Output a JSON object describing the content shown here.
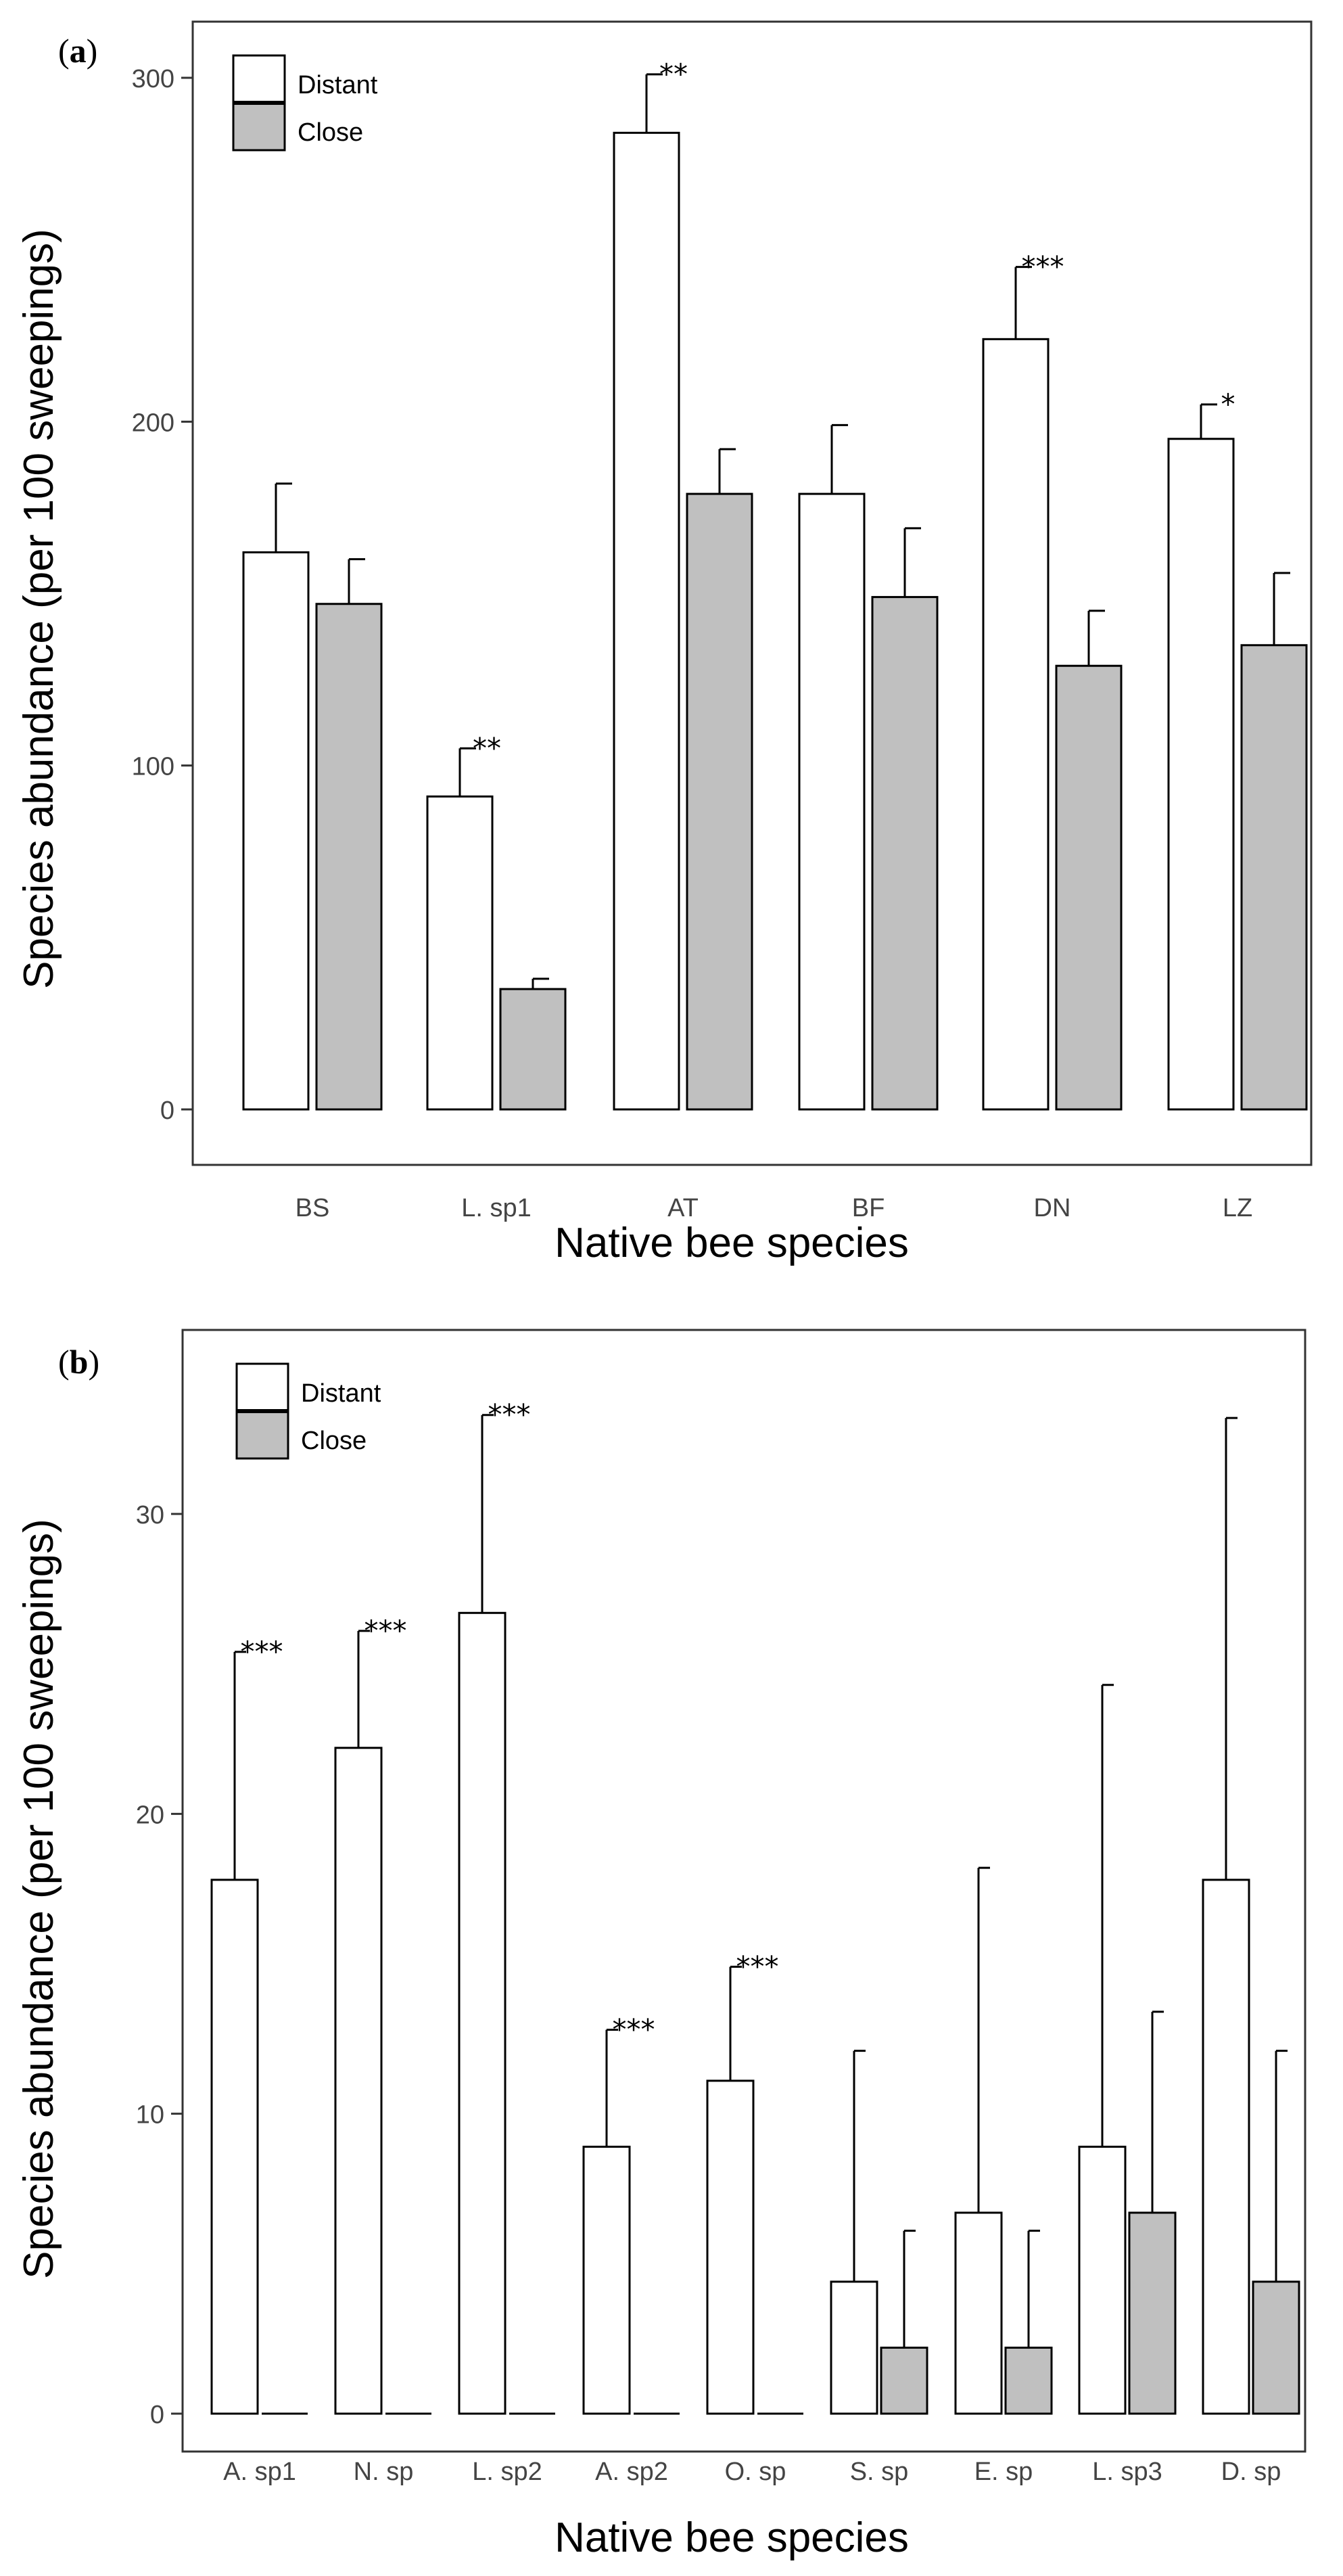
{
  "chart_data": [
    {
      "type": "bar",
      "panel_label": "(a)",
      "panel_letter": "a",
      "xlabel": "Native bee species",
      "ylabel": "Species abundance (per 100 sweepings)",
      "ylim": [
        0,
        310
      ],
      "yticks": [
        0,
        100,
        200,
        300
      ],
      "grid": false,
      "legend": {
        "position": "top-left",
        "entries": [
          {
            "name": "Distant",
            "color": "#ffffff"
          },
          {
            "name": "Close",
            "color": "#c0c0c0"
          }
        ]
      },
      "categories": [
        "BS",
        "L. sp1",
        "AT",
        "BF",
        "DN",
        "LZ"
      ],
      "series": [
        {
          "name": "Distant",
          "color": "#ffffff",
          "values": [
            162,
            91,
            284,
            179,
            224,
            195
          ],
          "errors": [
            20,
            14,
            17,
            20,
            21,
            10
          ]
        },
        {
          "name": "Close",
          "color": "#c0c0c0",
          "values": [
            147,
            35,
            179,
            149,
            129,
            135
          ],
          "errors": [
            13,
            3,
            13,
            20,
            16,
            21
          ]
        }
      ],
      "annotations": [
        "",
        "**",
        "**",
        "",
        "***",
        "*"
      ]
    },
    {
      "type": "bar",
      "panel_label": "(b)",
      "panel_letter": "b",
      "xlabel": "Native bee species",
      "ylabel": "Species abundance (per 100 sweepings)",
      "ylim": [
        0,
        35
      ],
      "yticks": [
        0,
        10,
        20,
        30
      ],
      "grid": false,
      "legend": {
        "position": "top-left",
        "entries": [
          {
            "name": "Distant",
            "color": "#ffffff"
          },
          {
            "name": "Close",
            "color": "#c0c0c0"
          }
        ]
      },
      "categories": [
        "A. sp1",
        "N. sp",
        "L. sp2",
        "A. sp2",
        "O. sp",
        "S. sp",
        "E. sp",
        "L. sp3",
        "D. sp"
      ],
      "series": [
        {
          "name": "Distant",
          "color": "#ffffff",
          "values": [
            17.8,
            22.2,
            26.7,
            8.9,
            11.1,
            4.4,
            6.7,
            8.9,
            17.8
          ],
          "errors": [
            7.6,
            3.9,
            6.6,
            3.9,
            3.8,
            7.7,
            11.5,
            15.4,
            15.4
          ]
        },
        {
          "name": "Close",
          "color": "#c0c0c0",
          "values": [
            0,
            0,
            0,
            0,
            0,
            2.2,
            2.2,
            6.7,
            4.4
          ],
          "errors": [
            0,
            0,
            0,
            0,
            0,
            3.9,
            3.9,
            6.7,
            7.7
          ]
        }
      ],
      "annotations": [
        "***",
        "***",
        "***",
        "***",
        "***",
        "",
        "",
        "",
        ""
      ]
    }
  ]
}
